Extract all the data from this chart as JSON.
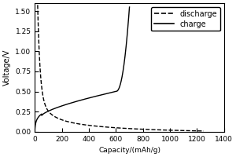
{
  "title": "",
  "xlabel": "Capacity/(mAh/g)",
  "ylabel": "Voltage/V",
  "xlim": [
    0,
    1400
  ],
  "ylim": [
    0.0,
    1.6
  ],
  "xticks": [
    0,
    200,
    400,
    600,
    800,
    1000,
    1200,
    1400
  ],
  "yticks": [
    0.0,
    0.25,
    0.5,
    0.75,
    1.0,
    1.25,
    1.5
  ],
  "legend_labels": [
    "discharge",
    "charge"
  ],
  "line_color": "#000000",
  "background_color": "#ffffff",
  "discharge_max_capacity": 1250,
  "charge_max_capacity": 700
}
